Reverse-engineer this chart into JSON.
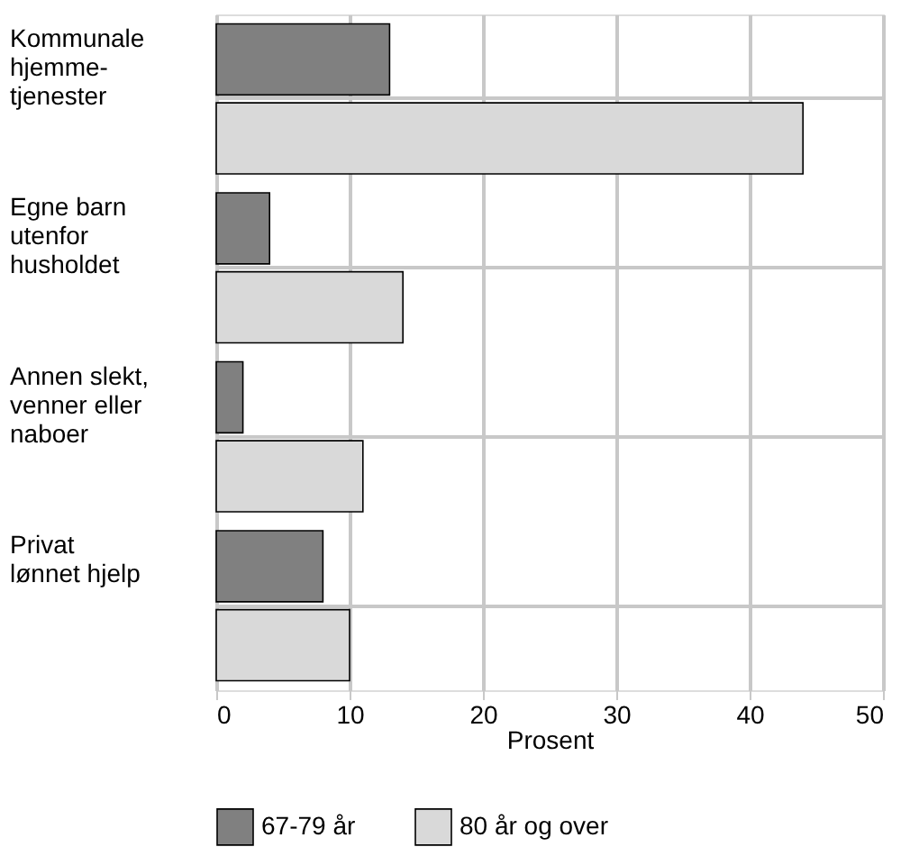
{
  "chart_data": {
    "type": "bar",
    "orientation": "horizontal",
    "categories": [
      "Kommunale hjemme-tjenester",
      "Egne barn utenfor husholdet",
      "Annen slekt, venner eller naboer",
      "Privat lønnet hjelp"
    ],
    "series": [
      {
        "name": "67-79 år",
        "color": "#808080",
        "values": [
          13,
          4,
          2,
          8
        ]
      },
      {
        "name": "80 år og over",
        "color": "#d9d9d9",
        "values": [
          44,
          14,
          11,
          10
        ]
      }
    ],
    "xlabel": "Prosent",
    "xlim": [
      0,
      50
    ],
    "xticks": [
      0,
      10,
      20,
      30,
      40,
      50
    ],
    "grid": true,
    "legend": "bottom"
  }
}
